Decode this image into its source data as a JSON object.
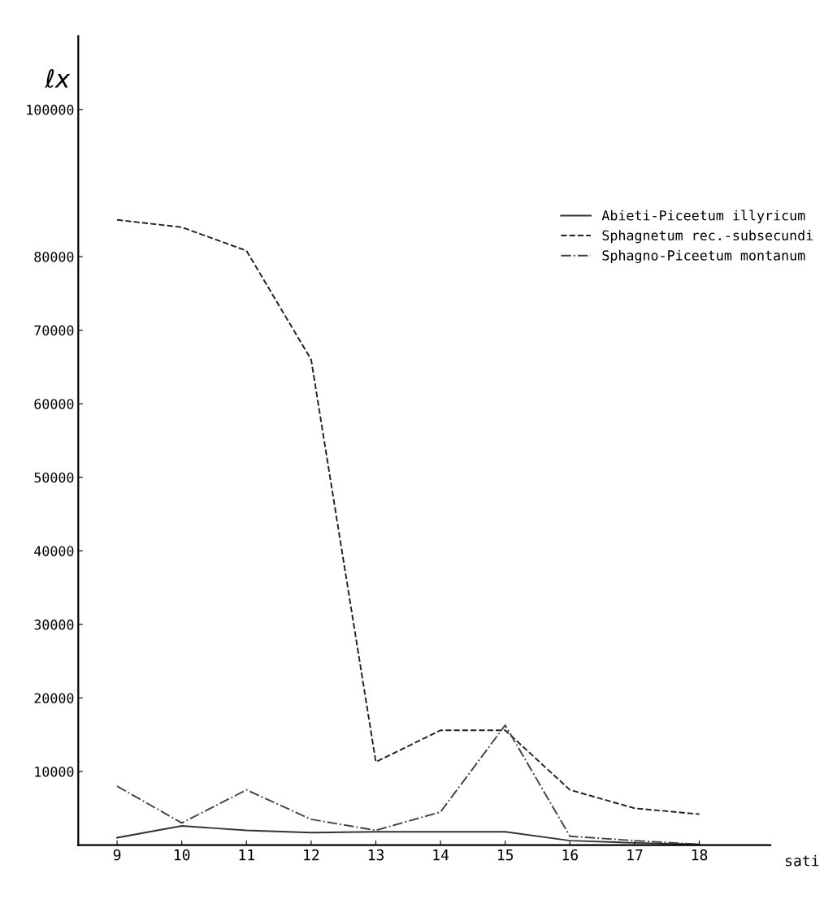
{
  "chart_data": {
    "type": "line",
    "xlabel": "sati",
    "ylabel": "ℓx",
    "x": [
      9,
      10,
      11,
      12,
      13,
      14,
      15,
      16,
      17,
      18
    ],
    "series": [
      {
        "name": "Abieti-Piceetum illyricum",
        "color": "#333333",
        "line_style": "solid",
        "values": [
          1000,
          2600,
          2000,
          1700,
          1800,
          1800,
          1800,
          600,
          300,
          100
        ]
      },
      {
        "name": "Sphagnetum rec.-subsecundi",
        "color": "#222222",
        "line_style": "dashed",
        "values": [
          85000,
          84000,
          80800,
          66000,
          11300,
          15600,
          15600,
          7500,
          5000,
          4200
        ]
      },
      {
        "name": "Sphagno-Piceetum montanum",
        "color": "#444444",
        "line_style": "dashdot",
        "values": [
          8000,
          3000,
          7500,
          3500,
          2000,
          4500,
          16300,
          1200,
          600,
          100
        ]
      }
    ],
    "xlim": [
      8.4,
      19.1
    ],
    "ylim": [
      0,
      110000
    ],
    "xticks": [
      9,
      10,
      11,
      12,
      13,
      14,
      15,
      16,
      17,
      18
    ],
    "yticks": [
      10000,
      20000,
      30000,
      40000,
      50000,
      60000,
      70000,
      80000,
      100000
    ],
    "grid": false,
    "legend": "top right"
  }
}
